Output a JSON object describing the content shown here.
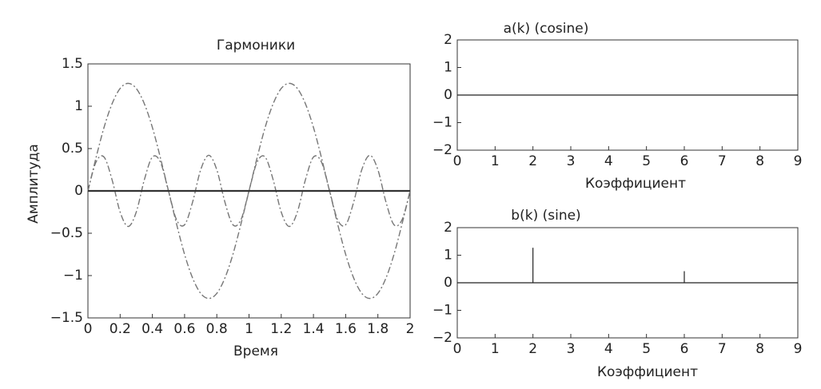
{
  "chart_data": [
    {
      "type": "line",
      "title": "Гармоники",
      "x_label": "Время",
      "y_label": "Амплитуда",
      "x": [
        0,
        0.05,
        0.1,
        0.15,
        0.2,
        0.25,
        0.3,
        0.35,
        0.4,
        0.45,
        0.5,
        0.55,
        0.6,
        0.65,
        0.7,
        0.75,
        0.8,
        0.85,
        0.9,
        0.95,
        1,
        1.05,
        1.1,
        1.15,
        1.2,
        1.25,
        1.3,
        1.35,
        1.4,
        1.45,
        1.5,
        1.55,
        1.6,
        1.65,
        1.7,
        1.75,
        1.8,
        1.85,
        1.9,
        1.95,
        2
      ],
      "series": [
        {
          "color": "#777777",
          "dash": "8 3 2 3",
          "values": [
            0,
            0.39,
            0.75,
            1.03,
            1.21,
            1.27,
            1.21,
            1.03,
            0.75,
            0.39,
            0,
            -0.39,
            -0.75,
            -1.03,
            -1.21,
            -1.27,
            -1.21,
            -1.03,
            -0.75,
            -0.39,
            0,
            0.39,
            0.75,
            1.03,
            1.21,
            1.27,
            1.21,
            1.03,
            0.75,
            0.39,
            0,
            -0.39,
            -0.75,
            -1.03,
            -1.21,
            -1.27,
            -1.21,
            -1.03,
            -0.75,
            -0.39,
            0
          ]
        },
        {
          "color": "#777777",
          "dash": "8 3 2 3",
          "values": [
            0,
            0.34,
            0.4,
            0.13,
            -0.25,
            -0.42,
            -0.25,
            0.13,
            0.4,
            0.34,
            0,
            -0.34,
            -0.4,
            -0.13,
            0.25,
            0.42,
            0.25,
            -0.13,
            -0.4,
            -0.34,
            0,
            0.34,
            0.4,
            0.13,
            -0.25,
            -0.42,
            -0.25,
            0.13,
            0.4,
            0.34,
            0,
            -0.34,
            -0.4,
            -0.13,
            0.25,
            0.42,
            0.25,
            -0.13,
            -0.4,
            -0.34,
            0
          ]
        },
        {
          "color": "#333333",
          "dash": "none",
          "values": [
            0,
            0,
            0,
            0,
            0,
            0,
            0,
            0,
            0,
            0,
            0,
            0,
            0,
            0,
            0,
            0,
            0,
            0,
            0,
            0,
            0,
            0,
            0,
            0,
            0,
            0,
            0,
            0,
            0,
            0,
            0,
            0,
            0,
            0,
            0,
            0,
            0,
            0,
            0,
            0,
            0
          ]
        }
      ],
      "xlim": [
        0,
        2
      ],
      "xticks": [
        0,
        0.2,
        0.4,
        0.6,
        0.8,
        1,
        1.2,
        1.4,
        1.6,
        1.8,
        2
      ],
      "ylim": [
        -1.5,
        1.5
      ],
      "yticks": [
        {
          "value": -1.5,
          "label": "−1.5"
        },
        {
          "value": -1,
          "label": "−1"
        },
        {
          "value": -0.5,
          "label": "−0.5"
        },
        0,
        0.5,
        1,
        1.5
      ]
    },
    {
      "type": "stem",
      "title": "a(k) (cosine)",
      "x_label": "Коэффициент",
      "x": [
        0,
        1,
        2,
        3,
        4,
        5,
        6,
        7,
        8,
        9
      ],
      "values": [
        0,
        0,
        0,
        0,
        0,
        0,
        0,
        0,
        0,
        0
      ],
      "color": "#222222",
      "xlim": [
        0,
        9
      ],
      "xticks": [
        0,
        1,
        2,
        3,
        4,
        5,
        6,
        7,
        8,
        9
      ],
      "ylim": [
        -2,
        2
      ],
      "yticks": [
        {
          "value": -2,
          "label": "−2"
        },
        {
          "value": -1,
          "label": "−1"
        },
        0,
        1,
        2
      ]
    },
    {
      "type": "stem",
      "title": "b(k) (sine)",
      "x_label": "Коэффициент",
      "x": [
        0,
        1,
        2,
        3,
        4,
        5,
        6,
        7,
        8,
        9
      ],
      "values": [
        0,
        0,
        1.27,
        0,
        0,
        0,
        0.42,
        0,
        0,
        0
      ],
      "color": "#222222",
      "xlim": [
        0,
        9
      ],
      "xticks": [
        0,
        1,
        2,
        3,
        4,
        5,
        6,
        7,
        8,
        9
      ],
      "ylim": [
        -2,
        2
      ],
      "yticks": [
        {
          "value": -2,
          "label": "−2"
        },
        {
          "value": -1,
          "label": "−1"
        },
        0,
        1,
        2
      ]
    }
  ]
}
